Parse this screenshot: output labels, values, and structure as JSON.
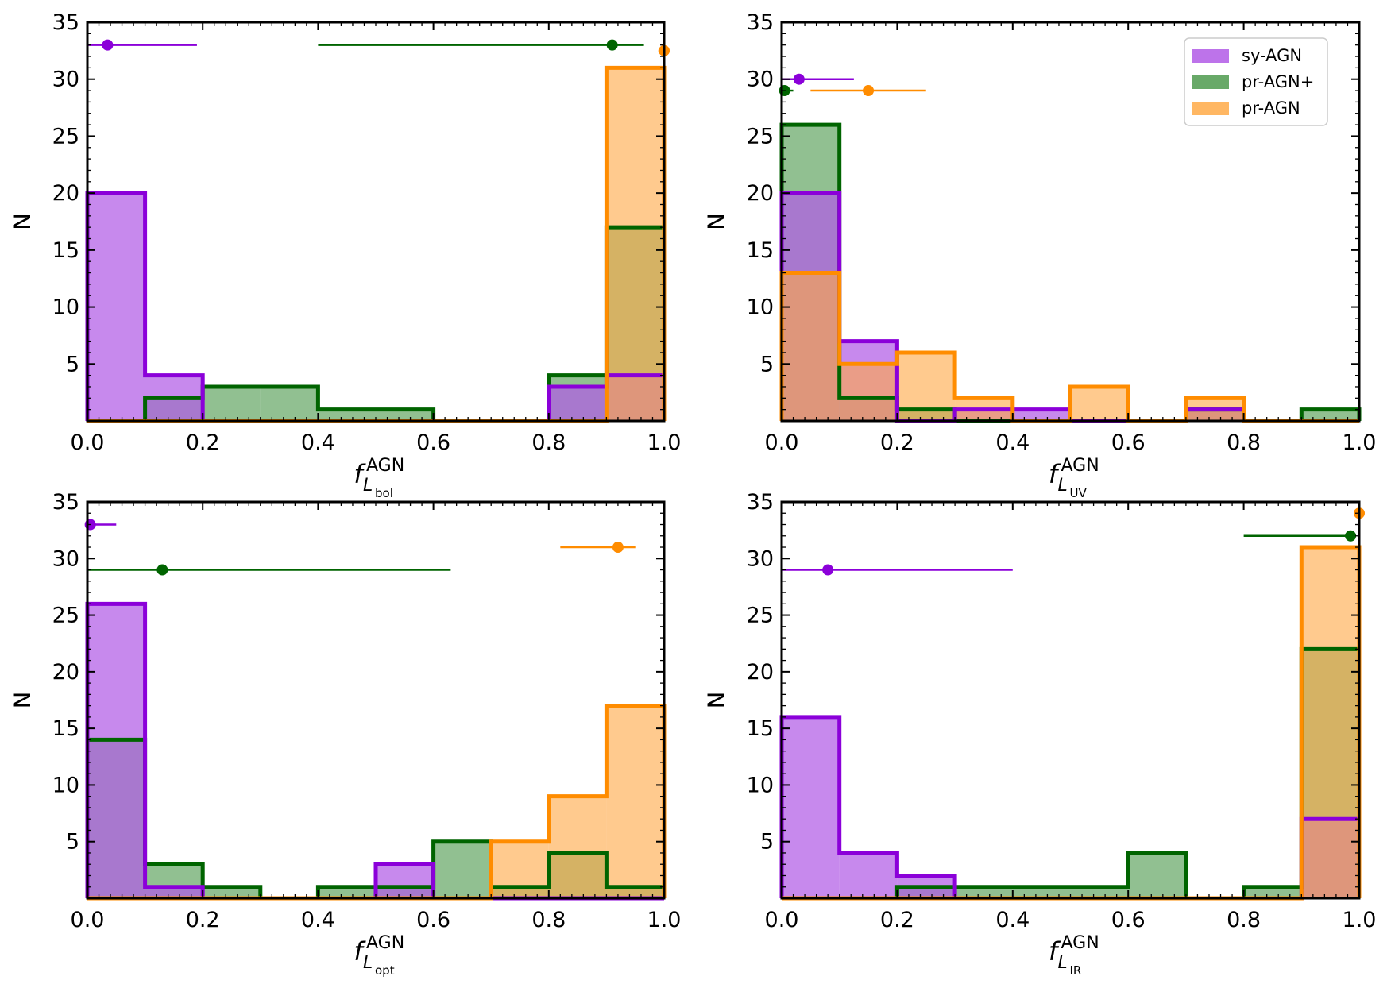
{
  "colors": {
    "sy": "#8B00D9",
    "sy_fill": "#B25BE6",
    "prplus": "#006400",
    "prplus_fill": "#4E9A4E",
    "pr": "#FF8C00",
    "pr_fill": "#FFAA48"
  },
  "chart_data": [
    {
      "type": "histogram",
      "xlabel": "f",
      "xlabel_sup": "AGN",
      "xlabel_sub": "L",
      "xlabel_subsub": "bol",
      "ylabel": "N",
      "xlim": [
        0,
        1
      ],
      "ylim": [
        0,
        35
      ],
      "xticks": [
        "0.0",
        "0.2",
        "0.4",
        "0.6",
        "0.8",
        "1.0"
      ],
      "yticks": [
        "5",
        "10",
        "15",
        "20",
        "25",
        "30",
        "35"
      ],
      "bin_edges": [
        0,
        0.1,
        0.2,
        0.3,
        0.4,
        0.5,
        0.6,
        0.7,
        0.8,
        0.9,
        1.0
      ],
      "legend": null,
      "series": [
        {
          "name": "sy-AGN",
          "key": "sy",
          "counts": [
            20,
            4,
            0,
            0,
            0,
            0,
            0,
            0,
            3,
            4
          ],
          "point": {
            "x": 0.035,
            "xerr": [
              0.0,
              0.19
            ],
            "y": 33
          }
        },
        {
          "name": "pr-AGN+",
          "key": "prplus",
          "counts": [
            0,
            2,
            3,
            3,
            1,
            1,
            0,
            0,
            4,
            17
          ],
          "point": {
            "x": 0.91,
            "xerr": [
              0.4,
              0.965
            ],
            "y": 33
          }
        },
        {
          "name": "pr-AGN",
          "key": "pr",
          "counts": [
            0,
            0,
            0,
            0,
            0,
            0,
            0,
            0,
            0,
            31
          ],
          "point": {
            "x": 1.0,
            "xerr": [
              0.99,
              1.0
            ],
            "y": 32.5
          }
        }
      ]
    },
    {
      "type": "histogram",
      "xlabel": "f",
      "xlabel_sup": "AGN",
      "xlabel_sub": "L",
      "xlabel_subsub": "UV",
      "ylabel": "N",
      "xlim": [
        0,
        1
      ],
      "ylim": [
        0,
        35
      ],
      "xticks": [
        "0.0",
        "0.2",
        "0.4",
        "0.6",
        "0.8",
        "1.0"
      ],
      "yticks": [
        "5",
        "10",
        "15",
        "20",
        "25",
        "30",
        "35"
      ],
      "bin_edges": [
        0,
        0.1,
        0.2,
        0.3,
        0.4,
        0.5,
        0.6,
        0.7,
        0.8,
        0.9,
        1.0
      ],
      "legend": {
        "position": "top-right",
        "labels": [
          "sy-AGN",
          "pr-AGN+",
          "pr-AGN"
        ]
      },
      "series": [
        {
          "name": "sy-AGN",
          "key": "sy",
          "counts": [
            20,
            7,
            0,
            1,
            1,
            0,
            0,
            1,
            0,
            0
          ],
          "point": {
            "x": 0.03,
            "xerr": [
              0.0,
              0.125
            ],
            "y": 30
          }
        },
        {
          "name": "pr-AGN+",
          "key": "prplus",
          "counts": [
            26,
            2,
            1,
            0,
            0,
            0,
            0,
            1,
            0,
            1
          ],
          "point": {
            "x": 0.005,
            "xerr": [
              0.0,
              0.02
            ],
            "y": 29
          }
        },
        {
          "name": "pr-AGN",
          "key": "pr",
          "counts": [
            13,
            5,
            6,
            2,
            0,
            3,
            0,
            2,
            0,
            0
          ],
          "point": {
            "x": 0.15,
            "xerr": [
              0.05,
              0.25
            ],
            "y": 29
          }
        }
      ]
    },
    {
      "type": "histogram",
      "xlabel": "f",
      "xlabel_sup": "AGN",
      "xlabel_sub": "L",
      "xlabel_subsub": "opt",
      "ylabel": "N",
      "xlim": [
        0,
        1
      ],
      "ylim": [
        0,
        35
      ],
      "xticks": [
        "0.0",
        "0.2",
        "0.4",
        "0.6",
        "0.8",
        "1.0"
      ],
      "yticks": [
        "5",
        "10",
        "15",
        "20",
        "25",
        "30",
        "35"
      ],
      "bin_edges": [
        0,
        0.1,
        0.2,
        0.3,
        0.4,
        0.5,
        0.6,
        0.7,
        0.8,
        0.9,
        1.0
      ],
      "legend": null,
      "series": [
        {
          "name": "sy-AGN",
          "key": "sy",
          "counts": [
            26,
            1,
            0,
            0,
            0,
            3,
            0,
            0,
            0,
            0
          ],
          "point": {
            "x": 0.005,
            "xerr": [
              0.0,
              0.05
            ],
            "y": 33
          }
        },
        {
          "name": "pr-AGN+",
          "key": "prplus",
          "counts": [
            14,
            3,
            1,
            0,
            1,
            1,
            5,
            1,
            4,
            1
          ],
          "point": {
            "x": 0.13,
            "xerr": [
              0.0,
              0.63
            ],
            "y": 29
          }
        },
        {
          "name": "pr-AGN",
          "key": "pr",
          "counts": [
            0,
            0,
            0,
            0,
            0,
            0,
            0,
            5,
            9,
            17
          ],
          "point": {
            "x": 0.92,
            "xerr": [
              0.82,
              0.95
            ],
            "y": 31
          }
        }
      ]
    },
    {
      "type": "histogram",
      "xlabel": "f",
      "xlabel_sup": "AGN",
      "xlabel_sub": "L",
      "xlabel_subsub": "IR",
      "ylabel": "N",
      "xlim": [
        0,
        1
      ],
      "ylim": [
        0,
        35
      ],
      "xticks": [
        "0.0",
        "0.2",
        "0.4",
        "0.6",
        "0.8",
        "1.0"
      ],
      "yticks": [
        "5",
        "10",
        "15",
        "20",
        "25",
        "30",
        "35"
      ],
      "bin_edges": [
        0,
        0.1,
        0.2,
        0.3,
        0.4,
        0.5,
        0.6,
        0.7,
        0.8,
        0.9,
        1.0
      ],
      "legend": null,
      "series": [
        {
          "name": "sy-AGN",
          "key": "sy",
          "counts": [
            16,
            4,
            2,
            0,
            0,
            0,
            0,
            0,
            0,
            7
          ],
          "point": {
            "x": 0.08,
            "xerr": [
              0.0,
              0.4
            ],
            "y": 29
          }
        },
        {
          "name": "pr-AGN+",
          "key": "prplus",
          "counts": [
            0,
            0,
            1,
            1,
            1,
            1,
            4,
            0,
            1,
            22
          ],
          "point": {
            "x": 0.985,
            "xerr": [
              0.8,
              0.99
            ],
            "y": 32
          }
        },
        {
          "name": "pr-AGN",
          "key": "pr",
          "counts": [
            0,
            0,
            0,
            0,
            0,
            0,
            0,
            0,
            0,
            31
          ],
          "point": {
            "x": 1.0,
            "xerr": [
              0.995,
              1.0
            ],
            "y": 34
          }
        }
      ]
    }
  ]
}
